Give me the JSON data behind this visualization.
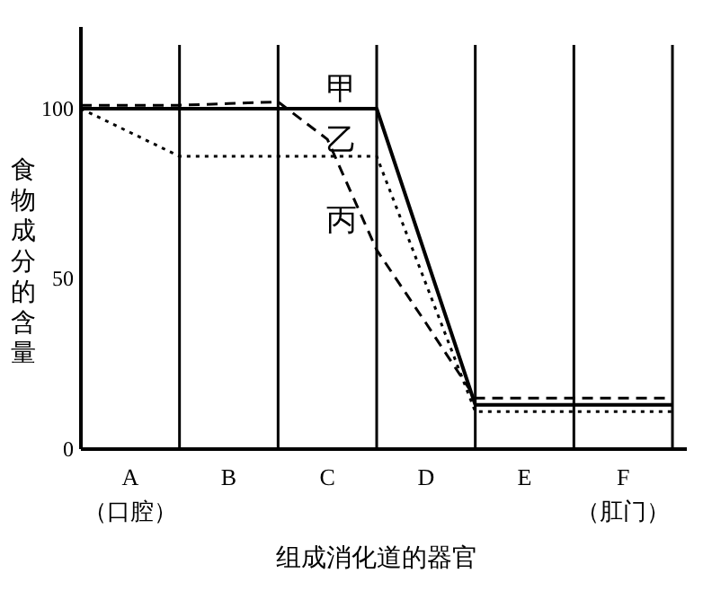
{
  "chart_data": {
    "type": "line",
    "xlabel": "组成消化道的器官",
    "ylabel": "食物成分的含量",
    "categories": [
      null,
      "A\n（口腔）",
      null,
      "B",
      null,
      "C",
      null,
      "D",
      null,
      "E",
      null,
      "F\n（肛门）",
      null
    ],
    "ylim": [
      0,
      124
    ],
    "yticks": [
      0,
      50,
      100
    ],
    "series": [
      {
        "name": "甲",
        "color": "#000000",
        "line_style": "solid",
        "values": [
          100,
          100,
          100,
          100,
          100,
          100,
          100,
          56.5,
          13,
          13,
          13,
          13,
          13
        ]
      },
      {
        "name": "乙",
        "color": "#000000",
        "line_style": "dotted",
        "values": [
          100,
          93,
          86,
          86,
          86,
          86,
          86,
          48.5,
          11,
          11,
          11,
          11,
          11
        ]
      },
      {
        "name": "丙",
        "color": "#000000",
        "line_style": "dashed",
        "values": [
          101,
          101,
          101,
          101.5,
          102,
          91,
          58.5,
          37,
          15,
          15,
          15,
          15,
          15
        ]
      }
    ],
    "grid": "x",
    "legend": false
  }
}
